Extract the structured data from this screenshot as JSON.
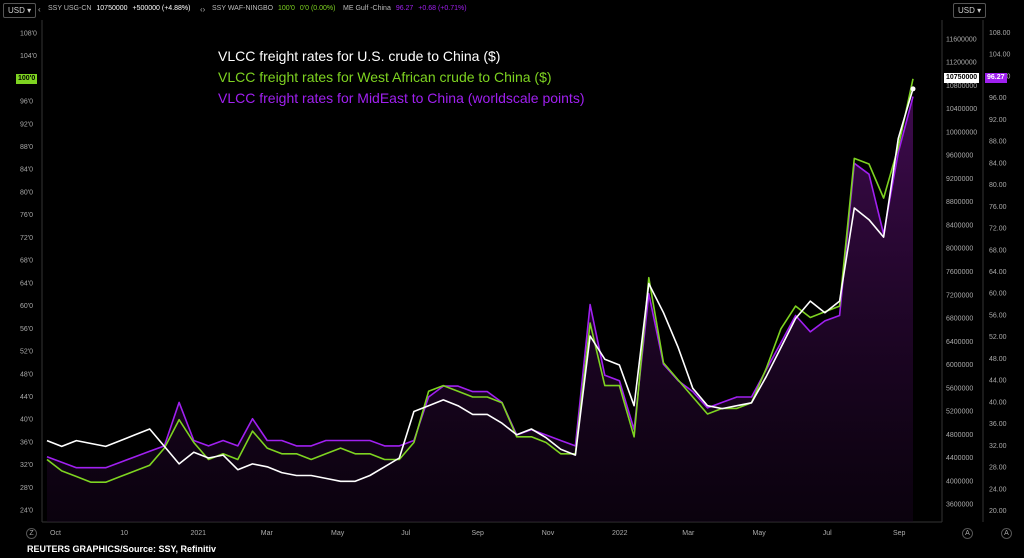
{
  "toolbar": {
    "currency_left": "USD",
    "currency_right": "USD",
    "tickers": [
      {
        "symbol": "SSY USG-CN",
        "value": "10750000",
        "change": "+500000 (+4.88%)",
        "color": "#ffffff"
      },
      {
        "symbol": "SSY WAF-NINGBO",
        "value": "100'0",
        "change": "0'0 (0.00%)",
        "color": "#7ed321"
      },
      {
        "symbol": "ME Gulf -China",
        "value": "96.27",
        "change": "+0.68 (+0.71%)",
        "color": "#a020f0"
      }
    ]
  },
  "chart_data": {
    "type": "line",
    "title": "",
    "legend": [
      {
        "label": "VLCC freight rates for U.S. crude to China ($)",
        "color": "#ffffff"
      },
      {
        "label": "VLCC freight rates for West African crude to China ($)",
        "color": "#7ed321"
      },
      {
        "label": "VLCC freight rates for MidEast to China (worldscale points)",
        "color": "#a020f0"
      }
    ],
    "x_ticks": [
      "Oct",
      "10",
      "2021",
      "Mar",
      "May",
      "Jul",
      "Sep",
      "Nov",
      "2022",
      "Mar",
      "May",
      "Jul",
      "Sep"
    ],
    "left_axis": {
      "ticks": [
        "24'0",
        "28'0",
        "32'0",
        "36'0",
        "40'0",
        "44'0",
        "48'0",
        "52'0",
        "56'0",
        "60'0",
        "64'0",
        "68'0",
        "72'0",
        "76'0",
        "80'0",
        "84'0",
        "88'0",
        "92'0",
        "96'0",
        "104'0",
        "108'0"
      ],
      "range": [
        22,
        110
      ]
    },
    "right_axis_1": {
      "ticks": [
        "3600000",
        "4000000",
        "4400000",
        "4800000",
        "5200000",
        "5600000",
        "6000000",
        "6400000",
        "6800000",
        "7200000",
        "7600000",
        "8000000",
        "8400000",
        "8800000",
        "9200000",
        "9600000",
        "10000000",
        "10400000",
        "10800000",
        "11200000",
        "11600000"
      ],
      "range": [
        3300000,
        11900000
      ]
    },
    "right_axis_2": {
      "ticks": [
        "20.00",
        "24.00",
        "28.00",
        "32.00",
        "36.00",
        "40.00",
        "44.00",
        "48.00",
        "52.00",
        "56.00",
        "60.00",
        "64.00",
        "68.00",
        "72.00",
        "76.00",
        "80.00",
        "84.00",
        "88.00",
        "92.00",
        "96.00",
        "100.00",
        "104.00",
        "108.00"
      ],
      "range": [
        18,
        110
      ]
    },
    "current_labels": {
      "left": "100'0",
      "right1": "10750000",
      "right2": "96.27"
    },
    "series": [
      {
        "name": "VLCC freight rates for U.S. crude to China ($)",
        "axis": "right_axis_1",
        "color": "#ffffff",
        "values": [
          4700000,
          4600000,
          4700000,
          4650000,
          4600000,
          4700000,
          4800000,
          4900000,
          4600000,
          4300000,
          4500000,
          4400000,
          4450000,
          4200000,
          4300000,
          4250000,
          4150000,
          4100000,
          4100000,
          4050000,
          4000000,
          4000000,
          4100000,
          4250000,
          4400000,
          5200000,
          5300000,
          5400000,
          5300000,
          5150000,
          5150000,
          5000000,
          4800000,
          4900000,
          4750000,
          4550000,
          4450000,
          6500000,
          6100000,
          6000000,
          5300000,
          7400000,
          6900000,
          6300000,
          5600000,
          5300000,
          5250000,
          5300000,
          5350000,
          5800000,
          6300000,
          6800000,
          7100000,
          6900000,
          7100000,
          8700000,
          8500000,
          8200000,
          9900000,
          10750000
        ]
      },
      {
        "name": "VLCC freight rates for West African crude to China ($)",
        "axis": "left_axis",
        "color": "#7ed321",
        "values": [
          33,
          31,
          30,
          29,
          29,
          30,
          31,
          32,
          35,
          40,
          36,
          33,
          34,
          33,
          38,
          35,
          34,
          34,
          33,
          34,
          35,
          34,
          34,
          33,
          33,
          36,
          45,
          46,
          45,
          44,
          44,
          43,
          37,
          37,
          36,
          34,
          34,
          57,
          46,
          46,
          37,
          65,
          50,
          47,
          44,
          41,
          42,
          42,
          43,
          49,
          56,
          60,
          58,
          59,
          60,
          86,
          85,
          79,
          88,
          100
        ]
      },
      {
        "name": "VLCC freight rates for MidEast to China (worldscale points)",
        "axis": "right_axis_2",
        "color": "#a020f0",
        "values": [
          30,
          29,
          28,
          28,
          28,
          29,
          30,
          31,
          32,
          40,
          33,
          32,
          33,
          32,
          37,
          33,
          33,
          32,
          32,
          33,
          33,
          33,
          33,
          32,
          32,
          33,
          41,
          43,
          43,
          42,
          42,
          40,
          34,
          35,
          34,
          33,
          32,
          58,
          45,
          44,
          35,
          60,
          47,
          44,
          42,
          39,
          40,
          41,
          41,
          46,
          51,
          56,
          53,
          55,
          56,
          84,
          82,
          71,
          86,
          96.27
        ]
      }
    ]
  },
  "footer": {
    "source": "REUTERS GRAPHICS/Source: SSY, Refinitiv"
  }
}
